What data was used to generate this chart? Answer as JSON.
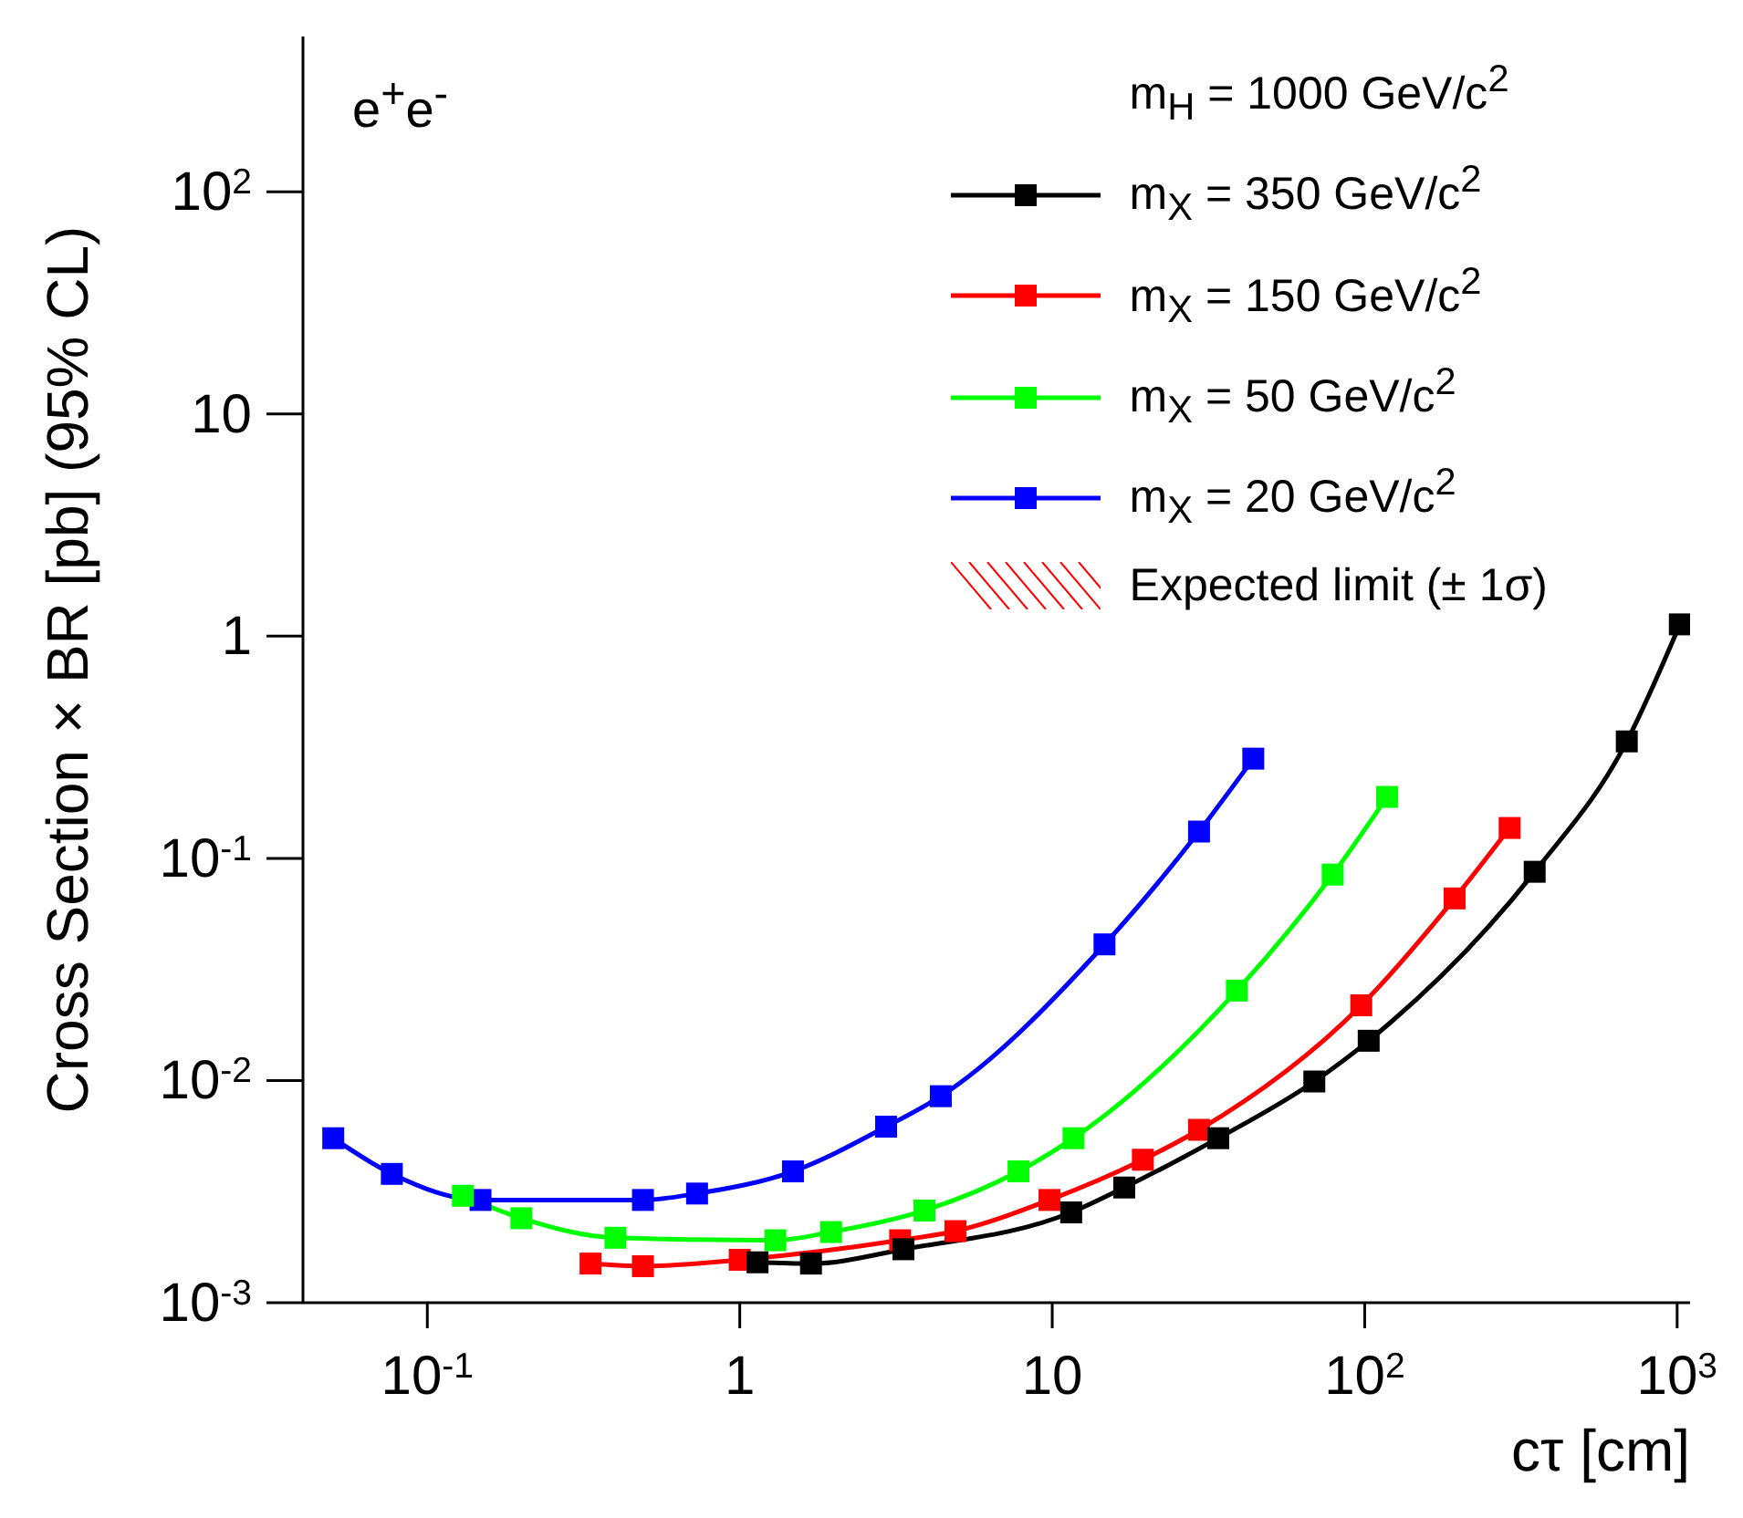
{
  "chart_data": {
    "type": "line",
    "xlabel": "cτ [cm]",
    "ylabel": "Cross Section × BR [pb] (95% CL)",
    "legend_title": "m$_{H}$ = 1000 GeV/c$^{2}$",
    "annotations": [
      "e$^{+}$e$^{-}$",
      "Expected limit (± 1σ)"
    ],
    "log": "xy",
    "xlim": [
      0.04,
      1100
    ],
    "ylim": [
      0.001,
      500
    ],
    "xticks": [
      {
        "value": 0.1,
        "label": "10$^{-1}$"
      },
      1,
      10,
      {
        "value": 100,
        "label": "10$^{2}$"
      },
      {
        "value": 1000,
        "label": "10$^{3}$"
      }
    ],
    "yticks": [
      {
        "value": 0.001,
        "label": "10$^{-3}$"
      },
      {
        "value": 0.01,
        "label": "10$^{-2}$"
      },
      {
        "value": 0.1,
        "label": "10$^{-1}$"
      },
      1,
      10,
      {
        "value": 100,
        "label": "10$^{2}$"
      }
    ],
    "legend": "top right",
    "marker": "square",
    "line_style": "solid",
    "series": [
      {
        "name": "m$_{X}$ = 350 GeV/c$^{2}$",
        "color": "#000000",
        "x": [
          1.14,
          1.69,
          3.34,
          11.5,
          17,
          34,
          69,
          103,
          350,
          690,
          1020
        ],
        "values": [
          0.00152,
          0.0015,
          0.00174,
          0.00255,
          0.0033,
          0.0055,
          0.0099,
          0.0151,
          0.087,
          0.336,
          1.13
        ]
      },
      {
        "name": "m$_{X}$ = 150 GeV/c$^{2}$",
        "color": "#ff0000",
        "x": [
          0.333,
          0.49,
          1.0,
          3.26,
          4.9,
          9.8,
          19.5,
          29.5,
          97.5,
          194,
          291
        ],
        "values": [
          0.0015,
          0.00146,
          0.00156,
          0.00191,
          0.0021,
          0.0029,
          0.0044,
          0.006,
          0.0218,
          0.066,
          0.137
        ]
      },
      {
        "name": "m$_{X}$ = 50 GeV/c$^{2}$",
        "color": "#00ff00",
        "x": [
          0.13,
          0.2,
          0.4,
          1.3,
          1.96,
          3.9,
          7.8,
          11.7,
          39,
          79,
          118
        ],
        "values": [
          0.00303,
          0.0024,
          0.00196,
          0.00191,
          0.00208,
          0.0026,
          0.0039,
          0.0055,
          0.0254,
          0.0845,
          0.189
        ]
      },
      {
        "name": "m$_{X}$ = 20 GeV/c$^{2}$",
        "color": "#0000ff",
        "x": [
          0.05,
          0.077,
          0.148,
          0.49,
          0.73,
          1.48,
          2.94,
          4.4,
          14.7,
          29.5,
          44
        ],
        "values": [
          0.0055,
          0.0038,
          0.0029,
          0.0029,
          0.0031,
          0.0039,
          0.0062,
          0.0085,
          0.041,
          0.132,
          0.281
        ]
      }
    ]
  }
}
